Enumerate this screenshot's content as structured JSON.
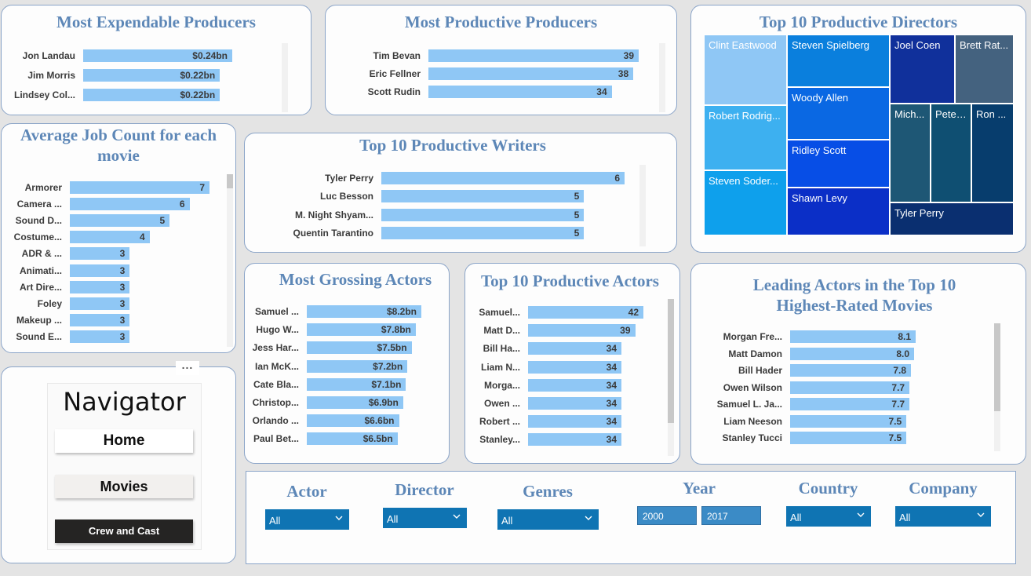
{
  "expendable_producers": {
    "title": "Most Expendable Producers",
    "items": [
      {
        "name": "Jon Landau",
        "label": "$0.24bn",
        "value": 0.24
      },
      {
        "name": "Jim Morris",
        "label": "$0.22bn",
        "value": 0.22
      },
      {
        "name": "Lindsey Col...",
        "label": "$0.22bn",
        "value": 0.22
      }
    ]
  },
  "productive_producers": {
    "title": "Most Productive Producers",
    "items": [
      {
        "name": "Tim Bevan",
        "label": "39",
        "value": 39
      },
      {
        "name": "Eric Fellner",
        "label": "38",
        "value": 38
      },
      {
        "name": "Scott Rudin",
        "label": "34",
        "value": 34
      }
    ]
  },
  "directors": {
    "title": "Top 10 Productive Directors",
    "tiles": [
      {
        "name": "Clint Eastwood",
        "color": "#8fc7f5"
      },
      {
        "name": "Robert Rodrig...",
        "color": "#3db0f0"
      },
      {
        "name": "Steven Soder...",
        "color": "#0ea0ec"
      },
      {
        "name": "Steven Spielberg",
        "color": "#0a7fdd"
      },
      {
        "name": "Woody Allen",
        "color": "#0a68e3"
      },
      {
        "name": "Ridley Scott",
        "color": "#074ee6"
      },
      {
        "name": "Shawn Levy",
        "color": "#0b2fc7"
      },
      {
        "name": "Joel Coen",
        "color": "#10309b"
      },
      {
        "name": "Brett Rat...",
        "color": "#44627f"
      },
      {
        "name": "Mich...",
        "color": "#1e5775"
      },
      {
        "name": "Peter...",
        "color": "#0f4f72"
      },
      {
        "name": "Ron ...",
        "color": "#073d6d"
      },
      {
        "name": "Tyler Perry",
        "color": "#0a2f70"
      }
    ]
  },
  "job_count": {
    "title": "Average Job Count for each movie",
    "items": [
      {
        "name": "Armorer",
        "label": "7",
        "value": 7
      },
      {
        "name": "Camera ...",
        "label": "6",
        "value": 6
      },
      {
        "name": "Sound D...",
        "label": "5",
        "value": 5
      },
      {
        "name": "Costume...",
        "label": "4",
        "value": 4
      },
      {
        "name": "ADR & ...",
        "label": "3",
        "value": 3
      },
      {
        "name": "Animati...",
        "label": "3",
        "value": 3
      },
      {
        "name": "Art Dire...",
        "label": "3",
        "value": 3
      },
      {
        "name": "Foley",
        "label": "3",
        "value": 3
      },
      {
        "name": "Makeup ...",
        "label": "3",
        "value": 3
      },
      {
        "name": "Sound E...",
        "label": "3",
        "value": 3
      }
    ]
  },
  "writers": {
    "title": "Top 10 Productive Writers",
    "items": [
      {
        "name": "Tyler Perry",
        "label": "6",
        "value": 6
      },
      {
        "name": "Luc Besson",
        "label": "5",
        "value": 5
      },
      {
        "name": "M. Night Shyam...",
        "label": "5",
        "value": 5
      },
      {
        "name": "Quentin Tarantino",
        "label": "5",
        "value": 5
      }
    ]
  },
  "grossing_actors": {
    "title": "Most Grossing Actors",
    "items": [
      {
        "name": "Samuel ...",
        "label": "$8.2bn",
        "value": 8.2
      },
      {
        "name": "Hugo W...",
        "label": "$7.8bn",
        "value": 7.8
      },
      {
        "name": "Jess Har...",
        "label": "$7.5bn",
        "value": 7.5
      },
      {
        "name": "Ian McK...",
        "label": "$7.2bn",
        "value": 7.2
      },
      {
        "name": "Cate Bla...",
        "label": "$7.1bn",
        "value": 7.1
      },
      {
        "name": "Christop...",
        "label": "$6.9bn",
        "value": 6.9
      },
      {
        "name": "Orlando ...",
        "label": "$6.6bn",
        "value": 6.6
      },
      {
        "name": "Paul Bet...",
        "label": "$6.5bn",
        "value": 6.5
      }
    ]
  },
  "productive_actors": {
    "title": "Top 10 Productive Actors",
    "items": [
      {
        "name": "Samuel...",
        "label": "42",
        "value": 42
      },
      {
        "name": "Matt D...",
        "label": "39",
        "value": 39
      },
      {
        "name": "Bill Ha...",
        "label": "34",
        "value": 34
      },
      {
        "name": "Liam N...",
        "label": "34",
        "value": 34
      },
      {
        "name": "Morga...",
        "label": "34",
        "value": 34
      },
      {
        "name": "Owen ...",
        "label": "34",
        "value": 34
      },
      {
        "name": "Robert ...",
        "label": "34",
        "value": 34
      },
      {
        "name": "Stanley...",
        "label": "34",
        "value": 34
      }
    ]
  },
  "leading_actors": {
    "title": "Leading Actors in the Top 10 Highest-Rated Movies",
    "items": [
      {
        "name": "Morgan Fre...",
        "label": "8.1",
        "value": 8.1
      },
      {
        "name": "Matt Damon",
        "label": "8.0",
        "value": 8.0
      },
      {
        "name": "Bill Hader",
        "label": "7.8",
        "value": 7.8
      },
      {
        "name": "Owen Wilson",
        "label": "7.7",
        "value": 7.7
      },
      {
        "name": "Samuel L. Ja...",
        "label": "7.7",
        "value": 7.7
      },
      {
        "name": "Liam Neeson",
        "label": "7.5",
        "value": 7.5
      },
      {
        "name": "Stanley Tucci",
        "label": "7.5",
        "value": 7.5
      }
    ]
  },
  "navigator": {
    "title": "Navigator",
    "home": "Home",
    "movies": "Movies",
    "crew": "Crew and Cast",
    "more": "..."
  },
  "filters": {
    "actor": {
      "label": "Actor",
      "value": "All"
    },
    "director": {
      "label": "Director",
      "value": "All"
    },
    "genres": {
      "label": "Genres",
      "value": "All"
    },
    "year": {
      "label": "Year",
      "from": "2000",
      "to": "2017"
    },
    "country": {
      "label": "Country",
      "value": "All"
    },
    "company": {
      "label": "Company",
      "value": "All"
    }
  },
  "colors": {
    "bar": "#8fc7f5",
    "title": "#5d87b7",
    "slicer": "#0f74b3"
  }
}
